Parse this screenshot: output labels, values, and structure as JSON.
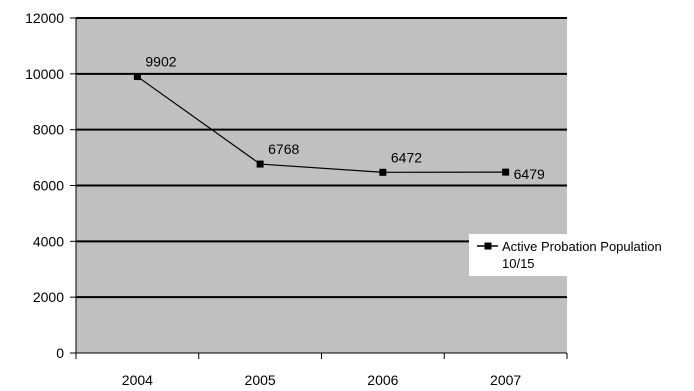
{
  "chart_data": {
    "type": "line",
    "categories": [
      "2004",
      "2005",
      "2006",
      "2007"
    ],
    "series": [
      {
        "name": "Active Probation Population 10/15",
        "values": [
          9902,
          6768,
          6472,
          6479
        ]
      }
    ],
    "y_ticks": [
      "0",
      "2000",
      "4000",
      "6000",
      "8000",
      "10000",
      "12000"
    ],
    "ylim": [
      0,
      12000
    ],
    "grid": true,
    "legend": {
      "position": "right",
      "line1": "Active Probation Population",
      "line2": "10/15"
    },
    "plot_background": "#c0c0c0",
    "line_color": "#000000",
    "grid_color": "#000000"
  }
}
